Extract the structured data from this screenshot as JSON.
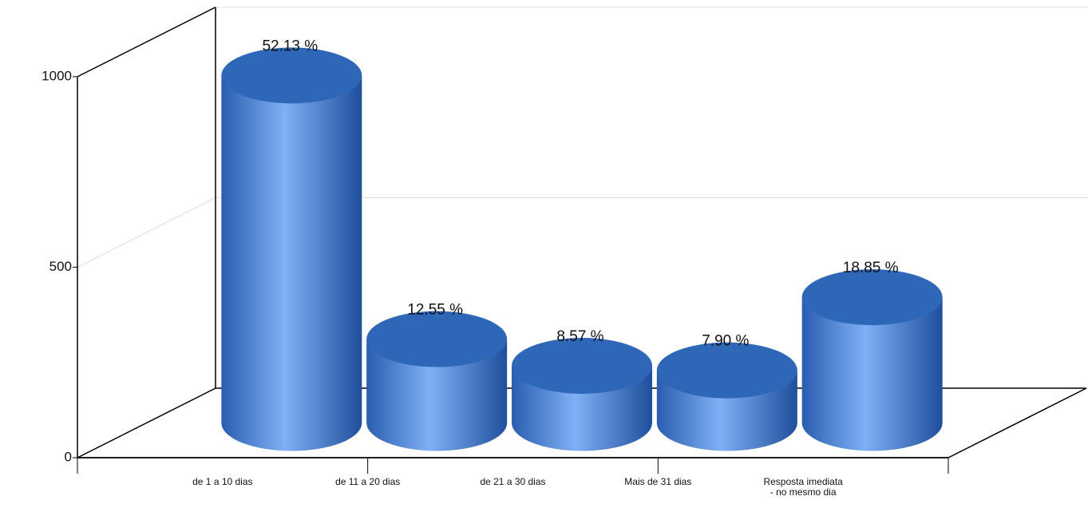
{
  "chart_data": {
    "type": "bar3d",
    "categories": [
      "de 1 a 10 dias",
      "de 11 a 20 dias",
      "de 21 a 30 dias",
      "Mais de 31 dias",
      "Resposta imediata\n- no mesmo dia"
    ],
    "values": [
      912,
      220,
      150,
      138,
      330
    ],
    "value_labels": [
      "52.13 %",
      "12.55 %",
      "8.57 %",
      "7.90 %",
      "18.85 %"
    ],
    "color": "#3a72c8",
    "ylim": [
      0,
      1000
    ],
    "yticks": [
      0,
      500,
      1000
    ],
    "grid": true
  }
}
